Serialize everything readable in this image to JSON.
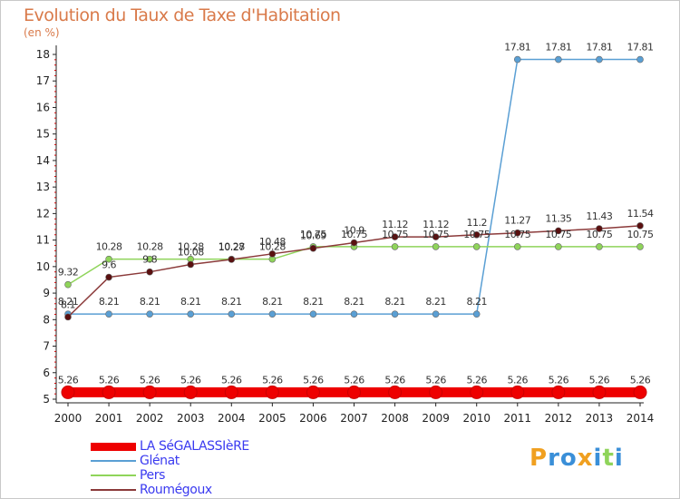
{
  "chart_data": {
    "type": "line",
    "title": "Evolution du Taux de Taxe d'Habitation",
    "unit": "(en %)",
    "x": [
      "2000",
      "2001",
      "2002",
      "2003",
      "2004",
      "2005",
      "2006",
      "2007",
      "2008",
      "2009",
      "2010",
      "2011",
      "2012",
      "2013",
      "2014"
    ],
    "y_ticks": [
      "5",
      "6",
      "7",
      "8",
      "9",
      "10",
      "11",
      "12",
      "13",
      "14",
      "15",
      "16",
      "17",
      "18"
    ],
    "ylim": [
      5,
      18
    ],
    "grid": false,
    "legend_placement": "bottom-left",
    "series": [
      {
        "name": "LA SéGALASSIèRE",
        "color": "#ee0000",
        "values": [
          5.26,
          5.26,
          5.26,
          5.26,
          5.26,
          5.26,
          5.26,
          5.26,
          5.26,
          5.26,
          5.26,
          5.26,
          5.26,
          5.26,
          5.26
        ],
        "labels": [
          "5.26",
          "5.26",
          "5.26",
          "5.26",
          "5.26",
          "5.26",
          "5.26",
          "5.26",
          "5.26",
          "5.26",
          "5.26",
          "5.26",
          "5.26",
          "5.26",
          "5.26"
        ]
      },
      {
        "name": "Glénat",
        "color": "#5a9fd4",
        "values": [
          8.21,
          8.21,
          8.21,
          8.21,
          8.21,
          8.21,
          8.21,
          8.21,
          8.21,
          8.21,
          8.21,
          17.81,
          17.81,
          17.81,
          17.81
        ],
        "labels": [
          "8.21",
          "8.21",
          "8.21",
          "8.21",
          "8.21",
          "8.21",
          "8.21",
          "8.21",
          "8.21",
          "8.21",
          "8.21",
          "17.81",
          "17.81",
          "17.81",
          "17.81"
        ]
      },
      {
        "name": "Pers",
        "color": "#8fd45a",
        "values": [
          9.32,
          10.28,
          10.28,
          10.28,
          10.28,
          10.28,
          10.75,
          10.75,
          10.75,
          10.75,
          10.75,
          10.75,
          10.75,
          10.75,
          10.75
        ],
        "labels": [
          "9.32",
          "10.28",
          "10.28",
          "10.28",
          "10.28",
          "10.28",
          "10.75",
          "10.75",
          "10.75",
          "10.75",
          "10.75",
          "10.75",
          "10.75",
          "10.75",
          "10.75"
        ]
      },
      {
        "name": "Roumégoux",
        "color": "#8b3a3a",
        "values": [
          8.1,
          9.6,
          9.8,
          10.08,
          10.27,
          10.48,
          10.69,
          10.9,
          11.12,
          11.12,
          11.2,
          11.27,
          11.35,
          11.43,
          11.54
        ],
        "labels": [
          "8.1",
          "9.6",
          "9.8",
          "10.08",
          "10.27",
          "10.48",
          "10.69",
          "10.9",
          "11.12",
          "11.12",
          "11.2",
          "11.27",
          "11.35",
          "11.43",
          "11.54"
        ]
      }
    ]
  },
  "logo": {
    "letters": [
      "P",
      "r",
      "o",
      "x",
      "i",
      "t",
      "i"
    ],
    "colors": [
      "#f0a020",
      "#3a8fd8",
      "#3a8fd8",
      "#f0a020",
      "#3a8fd8",
      "#8fd45a",
      "#3a8fd8"
    ]
  }
}
